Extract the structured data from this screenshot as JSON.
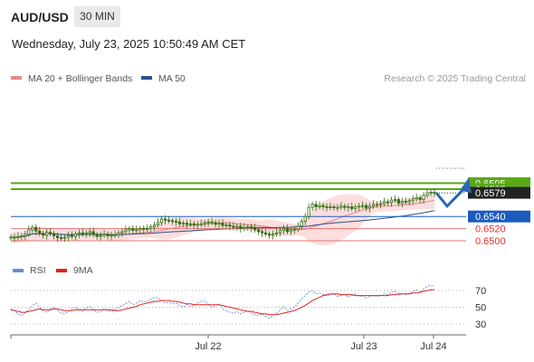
{
  "header": {
    "pair": "AUD/USD",
    "timeframe": "30 MIN",
    "datetime": "Wednesday, July 23, 2025 10:50:49 AM CET",
    "copyright": "Research © 2025 Trading Central"
  },
  "colors": {
    "candle": "#2f6e0f",
    "ma20": "#e98686",
    "bands_fill": "#fbd8d8",
    "ma50": "#2b4e8f",
    "resistance": "#5aa816",
    "pivot": "#1b5bbf",
    "support": "#e57373",
    "current_price": "#222222",
    "arrow": "#2b66b5",
    "rsi": "#6a8ad6",
    "rsi_ma": "#e02020"
  },
  "chart_data": [
    {
      "type": "candlestick",
      "legend": [
        {
          "name": "MA 20 + Bollinger Bands",
          "color": "#e98686"
        },
        {
          "name": "MA 50",
          "color": "#2b4e8f"
        }
      ],
      "x_ticks": [
        "Jul 22",
        "Jul 23",
        "Jul 24"
      ],
      "ylim": [
        0.649,
        0.66
      ],
      "levels": [
        {
          "name": "resistance-2",
          "value": 0.6595,
          "label": "0.6595",
          "style": "resistance"
        },
        {
          "name": "resistance-1",
          "value": 0.6585,
          "label": "0.6585",
          "style": "resistance"
        },
        {
          "name": "current-price",
          "value": 0.6579,
          "label": "0.6579",
          "style": "current"
        },
        {
          "name": "pivot",
          "value": 0.654,
          "label": "0.6540",
          "style": "pivot"
        },
        {
          "name": "support-1",
          "value": 0.652,
          "label": "0.6520",
          "style": "support"
        },
        {
          "name": "support-2",
          "value": 0.65,
          "label": "0.6500",
          "style": "support"
        }
      ],
      "scenario": {
        "from": 0.6579,
        "dip_to": 0.6557,
        "target": 0.6595
      },
      "closes": [
        0.6506,
        0.6505,
        0.6507,
        0.6508,
        0.6511,
        0.6518,
        0.6522,
        0.6516,
        0.6512,
        0.6509,
        0.6514,
        0.6512,
        0.6508,
        0.6505,
        0.6504,
        0.6506,
        0.6509,
        0.6507,
        0.6511,
        0.6513,
        0.6511,
        0.6513,
        0.6515,
        0.651,
        0.6507,
        0.6509,
        0.6511,
        0.6508,
        0.6509,
        0.651,
        0.6513,
        0.6515,
        0.6518,
        0.652,
        0.6517,
        0.6518,
        0.652,
        0.6519,
        0.652,
        0.6523,
        0.6526,
        0.653,
        0.6536,
        0.6534,
        0.6533,
        0.6532,
        0.6531,
        0.6528,
        0.6529,
        0.6527,
        0.6528,
        0.6526,
        0.6527,
        0.6528,
        0.653,
        0.6531,
        0.653,
        0.6527,
        0.6529,
        0.6525,
        0.6526,
        0.6524,
        0.6522,
        0.6524,
        0.652,
        0.6522,
        0.6523,
        0.6521,
        0.6518,
        0.6515,
        0.6513,
        0.6511,
        0.6509,
        0.6511,
        0.6513,
        0.6517,
        0.652,
        0.6515,
        0.6518,
        0.6519,
        0.6524,
        0.6532,
        0.654,
        0.6555,
        0.656,
        0.6556,
        0.6558,
        0.6556,
        0.6555,
        0.6556,
        0.6555,
        0.6555,
        0.6557,
        0.6555,
        0.6556,
        0.6553,
        0.6556,
        0.6557,
        0.6558,
        0.6554,
        0.6557,
        0.656,
        0.656,
        0.6561,
        0.6564,
        0.6563,
        0.6567,
        0.6568,
        0.6562,
        0.6565,
        0.6564,
        0.6566,
        0.6569,
        0.6571,
        0.6568,
        0.6575,
        0.6579,
        0.658,
        0.6579
      ]
    },
    {
      "type": "line",
      "name": "rsi-panel",
      "legend": [
        {
          "name": "RSI",
          "color": "#6a8ad6"
        },
        {
          "name": "9MA",
          "color": "#e02020"
        }
      ],
      "y_ticks": [
        70,
        50,
        30
      ],
      "ylim": [
        20,
        80
      ],
      "rsi": [
        48,
        46,
        42,
        40,
        44,
        47,
        52,
        55,
        50,
        46,
        44,
        48,
        50,
        47,
        43,
        42,
        45,
        48,
        50,
        47,
        45,
        49,
        51,
        47,
        44,
        45,
        48,
        46,
        45,
        47,
        50,
        52,
        54,
        57,
        53,
        55,
        58,
        56,
        57,
        60,
        62,
        61,
        58,
        55,
        56,
        54,
        55,
        52,
        50,
        53,
        51,
        52,
        55,
        57,
        58,
        53,
        50,
        52,
        54,
        48,
        46,
        44,
        43,
        45,
        42,
        44,
        46,
        43,
        41,
        40,
        42,
        39,
        37,
        40,
        43,
        47,
        51,
        46,
        48,
        50,
        55,
        60,
        64,
        68,
        70,
        66,
        67,
        65,
        64,
        65,
        66,
        63,
        64,
        65,
        62,
        64,
        66,
        63,
        64,
        61,
        63,
        64,
        63,
        64,
        66,
        65,
        68,
        69,
        64,
        66,
        65,
        66,
        69,
        71,
        67,
        72,
        75,
        76,
        75
      ],
      "ma9": [
        47,
        46,
        45,
        44,
        44,
        45,
        46,
        47,
        48,
        47,
        47,
        47,
        48,
        48,
        47,
        46,
        46,
        46,
        47,
        47,
        47,
        47,
        47,
        47,
        47,
        47,
        47,
        47,
        47,
        46,
        46,
        47,
        48,
        49,
        50,
        51,
        53,
        54,
        55,
        56,
        57,
        57,
        58,
        58,
        58,
        57,
        57,
        56,
        55,
        54,
        54,
        53,
        53,
        53,
        53,
        53,
        53,
        53,
        53,
        52,
        51,
        50,
        49,
        48,
        47,
        46,
        45,
        45,
        44,
        43,
        42,
        42,
        41,
        41,
        41,
        42,
        43,
        44,
        45,
        46,
        48,
        50,
        52,
        55,
        58,
        60,
        62,
        64,
        65,
        66,
        66,
        66,
        65,
        65,
        65,
        65,
        64,
        64,
        64,
        64,
        64,
        64,
        64,
        64,
        64,
        64,
        65,
        65,
        66,
        66,
        66,
        66,
        67,
        67,
        68,
        69,
        70,
        71,
        71
      ]
    }
  ]
}
